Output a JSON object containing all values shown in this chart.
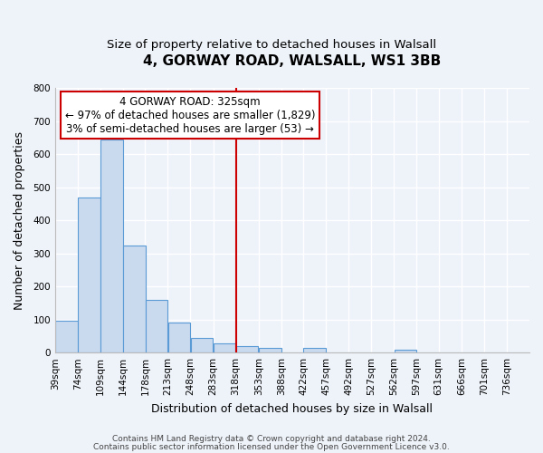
{
  "title": "4, GORWAY ROAD, WALSALL, WS1 3BB",
  "subtitle": "Size of property relative to detached houses in Walsall",
  "xlabel": "Distribution of detached houses by size in Walsall",
  "ylabel": "Number of detached properties",
  "bin_labels": [
    "39sqm",
    "74sqm",
    "109sqm",
    "144sqm",
    "178sqm",
    "213sqm",
    "248sqm",
    "283sqm",
    "318sqm",
    "353sqm",
    "388sqm",
    "422sqm",
    "457sqm",
    "492sqm",
    "527sqm",
    "562sqm",
    "597sqm",
    "631sqm",
    "666sqm",
    "701sqm",
    "736sqm"
  ],
  "bin_edges": [
    39,
    74,
    109,
    144,
    178,
    213,
    248,
    283,
    318,
    353,
    388,
    422,
    457,
    492,
    527,
    562,
    597,
    631,
    666,
    701,
    736
  ],
  "bar_heights": [
    95,
    470,
    645,
    323,
    158,
    92,
    43,
    27,
    20,
    15,
    0,
    13,
    0,
    0,
    0,
    10,
    0,
    0,
    0,
    0,
    0
  ],
  "bar_color": "#c9d9ee",
  "bar_edge_color": "#5b9bd5",
  "property_line_x": 318,
  "property_line_color": "#cc0000",
  "annotation_line1": "4 GORWAY ROAD: 325sqm",
  "annotation_line2": "← 97% of detached houses are smaller (1,829)",
  "annotation_line3": "3% of semi-detached houses are larger (53) →",
  "annotation_box_color": "#ffffff",
  "annotation_box_edge_color": "#cc0000",
  "ylim": [
    0,
    800
  ],
  "yticks": [
    0,
    100,
    200,
    300,
    400,
    500,
    600,
    700,
    800
  ],
  "footer1": "Contains HM Land Registry data © Crown copyright and database right 2024.",
  "footer2": "Contains public sector information licensed under the Open Government Licence v3.0.",
  "bg_color": "#eef2f9",
  "grid_color": "#ffffff",
  "title_fontsize": 11,
  "subtitle_fontsize": 9.5,
  "axis_label_fontsize": 9,
  "tick_fontsize": 7.5,
  "annotation_fontsize": 8.5,
  "footer_fontsize": 6.5
}
